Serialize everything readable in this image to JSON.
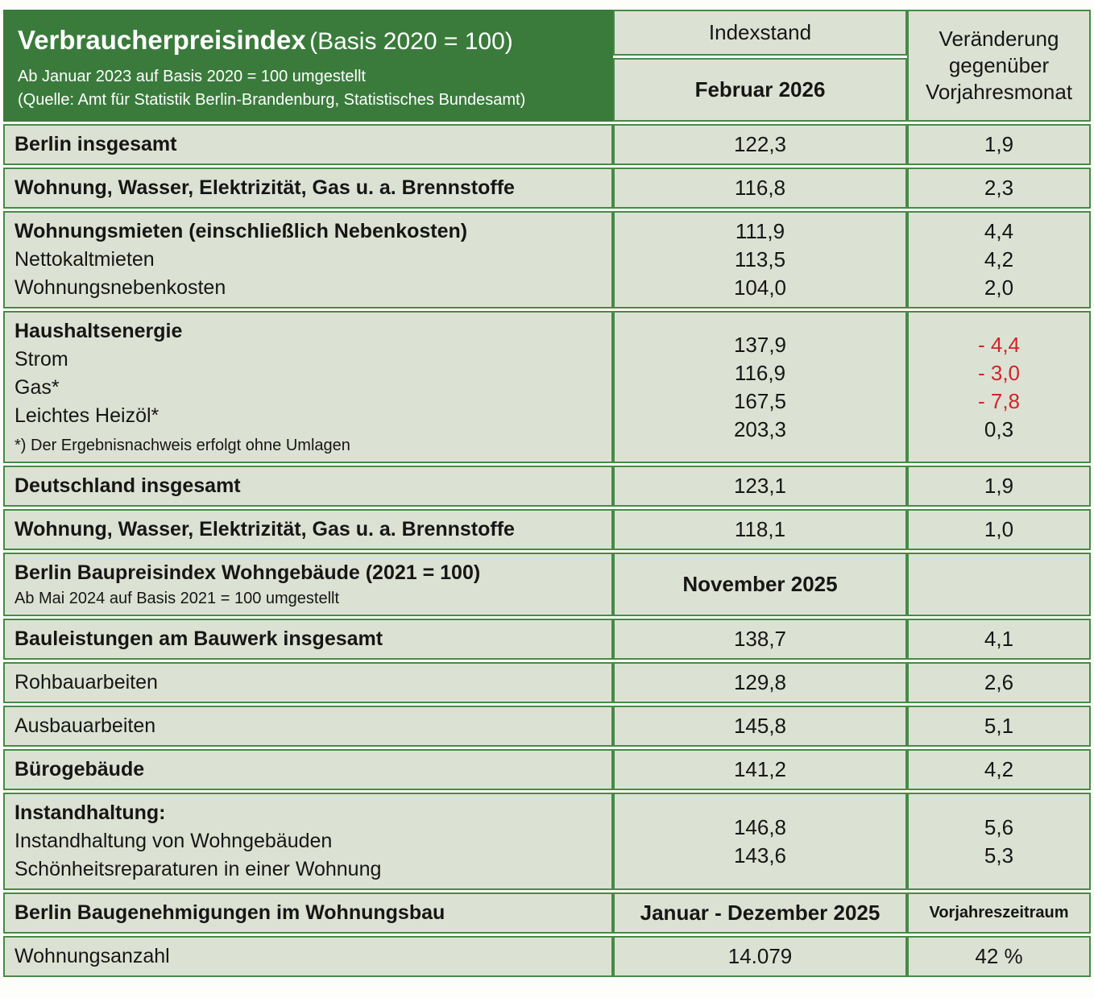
{
  "colors": {
    "header_green": "#3a7b3c",
    "border_green": "#478a47",
    "cell_background": "#dce2d3",
    "negative_red": "#d2232a",
    "text": "#161615",
    "header_text": "#ffffff"
  },
  "header": {
    "title": "Verbraucherpreisindex",
    "title_suffix": "(Basis 2020 = 100)",
    "subtitle1": "Ab Januar 2023 auf Basis 2020 = 100 umgestellt",
    "subtitle2": "(Quelle: Amt für Statistik Berlin-Brandenburg, Statistisches Bundesamt)",
    "col_index_label": "Indexstand",
    "col_index_period": "Februar 2026",
    "col_change_label": "Veränderung gegenüber Vorjahresmonat"
  },
  "rows": [
    {
      "lines": [
        {
          "label": "Berlin insgesamt",
          "bold": true,
          "value": "122,3",
          "change": "1,9"
        }
      ]
    },
    {
      "lines": [
        {
          "label": "Wohnung, Wasser, Elektrizität, Gas u. a. Brennstoffe",
          "bold": true,
          "value": "116,8",
          "change": "2,3"
        }
      ]
    },
    {
      "lines": [
        {
          "label": "Wohnungsmieten (einschließlich Nebenkosten)",
          "bold": true,
          "value": "111,9",
          "change": "4,4"
        },
        {
          "label": "Nettokaltmieten",
          "bold": false,
          "value": "113,5",
          "change": "4,2"
        },
        {
          "label": "Wohnungsnebenkosten",
          "bold": false,
          "value": "104,0",
          "change": "2,0"
        }
      ]
    },
    {
      "lines": [
        {
          "label": "Haushaltsenergie",
          "bold": true,
          "value": "137,9",
          "change": "- 4,4",
          "negative": true
        },
        {
          "label": "Strom",
          "bold": false,
          "value": "116,9",
          "change": "- 3,0",
          "negative": true
        },
        {
          "label": "Gas*",
          "bold": false,
          "value": "167,5",
          "change": "- 7,8",
          "negative": true
        },
        {
          "label": "Leichtes Heizöl*",
          "bold": false,
          "value": "203,3",
          "change": "0,3"
        }
      ],
      "footnote": "*) Der Ergebnisnachweis erfolgt ohne Umlagen"
    },
    {
      "lines": [
        {
          "label": "Deutschland insgesamt",
          "bold": true,
          "value": "123,1",
          "change": "1,9"
        }
      ]
    },
    {
      "lines": [
        {
          "label": "Wohnung, Wasser, Elektrizität, Gas u. a. Brennstoffe",
          "bold": true,
          "value": "118,1",
          "change": "1,0"
        }
      ]
    },
    {
      "type": "section",
      "label": "Berlin Baupreisindex Wohngebäude (2021 = 100)",
      "sub": "Ab Mai 2024 auf Basis 2021 = 100 umgestellt",
      "center": "November 2025",
      "change": ""
    },
    {
      "lines": [
        {
          "label": "Bauleistungen am Bauwerk insgesamt",
          "bold": true,
          "value": "138,7",
          "change": "4,1"
        }
      ]
    },
    {
      "lines": [
        {
          "label": "Rohbauarbeiten",
          "bold": false,
          "value": "129,8",
          "change": "2,6"
        }
      ]
    },
    {
      "lines": [
        {
          "label": "Ausbauarbeiten",
          "bold": false,
          "value": "145,8",
          "change": "5,1"
        }
      ]
    },
    {
      "lines": [
        {
          "label": "Bürogebäude",
          "bold": true,
          "value": "141,2",
          "change": "4,2"
        }
      ]
    },
    {
      "lines": [
        {
          "label": "Instandhaltung:",
          "bold": true,
          "value": "",
          "change": ""
        },
        {
          "label": "Instandhaltung von Wohngebäuden",
          "bold": false,
          "value": "146,8",
          "change": "5,6"
        },
        {
          "label": "Schönheitsreparaturen in einer Wohnung",
          "bold": false,
          "value": "143,6",
          "change": "5,3"
        }
      ]
    },
    {
      "type": "section",
      "label": "Berlin Baugenehmigungen im Wohnungsbau",
      "center": "Januar - Dezember 2025",
      "change": "Vorjahreszeitraum"
    },
    {
      "lines": [
        {
          "label": "Wohnungsanzahl",
          "bold": false,
          "value": "14.079",
          "change": "42 %"
        }
      ]
    }
  ]
}
